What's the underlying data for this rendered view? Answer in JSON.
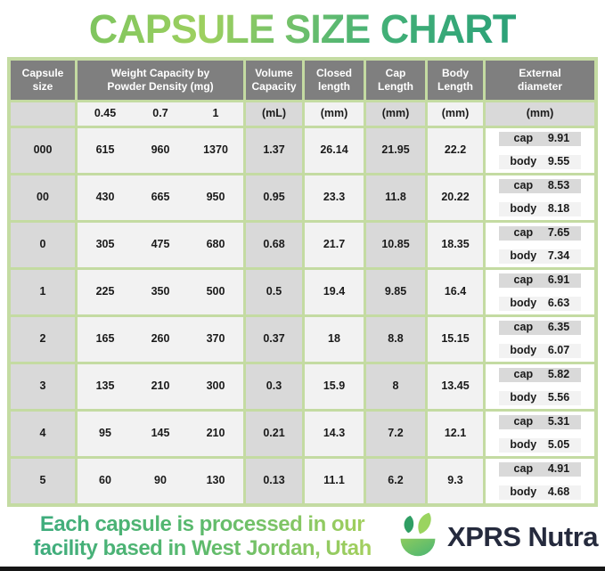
{
  "title": "CAPSULE SIZE CHART",
  "colors": {
    "border_green": "#c4dba2",
    "header_gray": "#7f7f7f",
    "cell_gray": "#d9d9d9",
    "cell_light": "#f2f2f2",
    "title_green_light": "#9ed05f",
    "title_green_dark": "#2aa078",
    "brand_navy": "#252a3d",
    "logo_leaf_dark": "#2f9e63",
    "logo_leaf_light": "#9ad45f",
    "logo_bowl_green": "#5fbd6d"
  },
  "header": {
    "capsule_size": "Capsule size",
    "weight_l1": "Weight Capacity by",
    "weight_l2": "Powder Density (mg)",
    "volume_l1": "Volume",
    "volume_l2": "Capacity",
    "closed_l1": "Closed",
    "closed_l2": "length",
    "cap_l1": "Cap",
    "cap_l2": "Length",
    "body_l1": "Body",
    "body_l2": "Length",
    "ext_l1": "External",
    "ext_l2": "diameter"
  },
  "units": {
    "density_045": "0.45",
    "density_07": "0.7",
    "density_1": "1",
    "volume": "(mL)",
    "closed": "(mm)",
    "cap": "(mm)",
    "body": "(mm)",
    "external": "(mm)"
  },
  "ext_labels": {
    "cap": "cap",
    "body": "body"
  },
  "chart_data": {
    "type": "table",
    "title": "CAPSULE SIZE CHART",
    "columns": [
      "Capsule size",
      "Weight Capacity by Powder Density (mg) @ 0.45",
      "Weight Capacity by Powder Density (mg) @ 0.7",
      "Weight Capacity by Powder Density (mg) @ 1",
      "Volume Capacity (mL)",
      "Closed length (mm)",
      "Cap Length (mm)",
      "Body Length (mm)",
      "External diameter cap (mm)",
      "External diameter body (mm)"
    ],
    "rows": [
      {
        "size": "000",
        "w045": "615",
        "w07": "960",
        "w1": "1370",
        "volume": "1.37",
        "closed": "26.14",
        "cap_len": "21.95",
        "body_len": "22.2",
        "ext_cap": "9.91",
        "ext_body": "9.55"
      },
      {
        "size": "00",
        "w045": "430",
        "w07": "665",
        "w1": "950",
        "volume": "0.95",
        "closed": "23.3",
        "cap_len": "11.8",
        "body_len": "20.22",
        "ext_cap": "8.53",
        "ext_body": "8.18"
      },
      {
        "size": "0",
        "w045": "305",
        "w07": "475",
        "w1": "680",
        "volume": "0.68",
        "closed": "21.7",
        "cap_len": "10.85",
        "body_len": "18.35",
        "ext_cap": "7.65",
        "ext_body": "7.34"
      },
      {
        "size": "1",
        "w045": "225",
        "w07": "350",
        "w1": "500",
        "volume": "0.5",
        "closed": "19.4",
        "cap_len": "9.85",
        "body_len": "16.4",
        "ext_cap": "6.91",
        "ext_body": "6.63"
      },
      {
        "size": "2",
        "w045": "165",
        "w07": "260",
        "w1": "370",
        "volume": "0.37",
        "closed": "18",
        "cap_len": "8.8",
        "body_len": "15.15",
        "ext_cap": "6.35",
        "ext_body": "6.07"
      },
      {
        "size": "3",
        "w045": "135",
        "w07": "210",
        "w1": "300",
        "volume": "0.3",
        "closed": "15.9",
        "cap_len": "8",
        "body_len": "13.45",
        "ext_cap": "5.82",
        "ext_body": "5.56"
      },
      {
        "size": "4",
        "w045": "95",
        "w07": "145",
        "w1": "210",
        "volume": "0.21",
        "closed": "14.3",
        "cap_len": "7.2",
        "body_len": "12.1",
        "ext_cap": "5.31",
        "ext_body": "5.05"
      },
      {
        "size": "5",
        "w045": "60",
        "w07": "90",
        "w1": "130",
        "volume": "0.13",
        "closed": "11.1",
        "cap_len": "6.2",
        "body_len": "9.3",
        "ext_cap": "4.91",
        "ext_body": "4.68"
      }
    ]
  },
  "footer": {
    "line1": "Each capsule is processed in our",
    "line2": "facility based in West Jordan, Utah",
    "brand": "XPRS Nutra",
    "logo_icon": "leaf-bowl-icon"
  }
}
